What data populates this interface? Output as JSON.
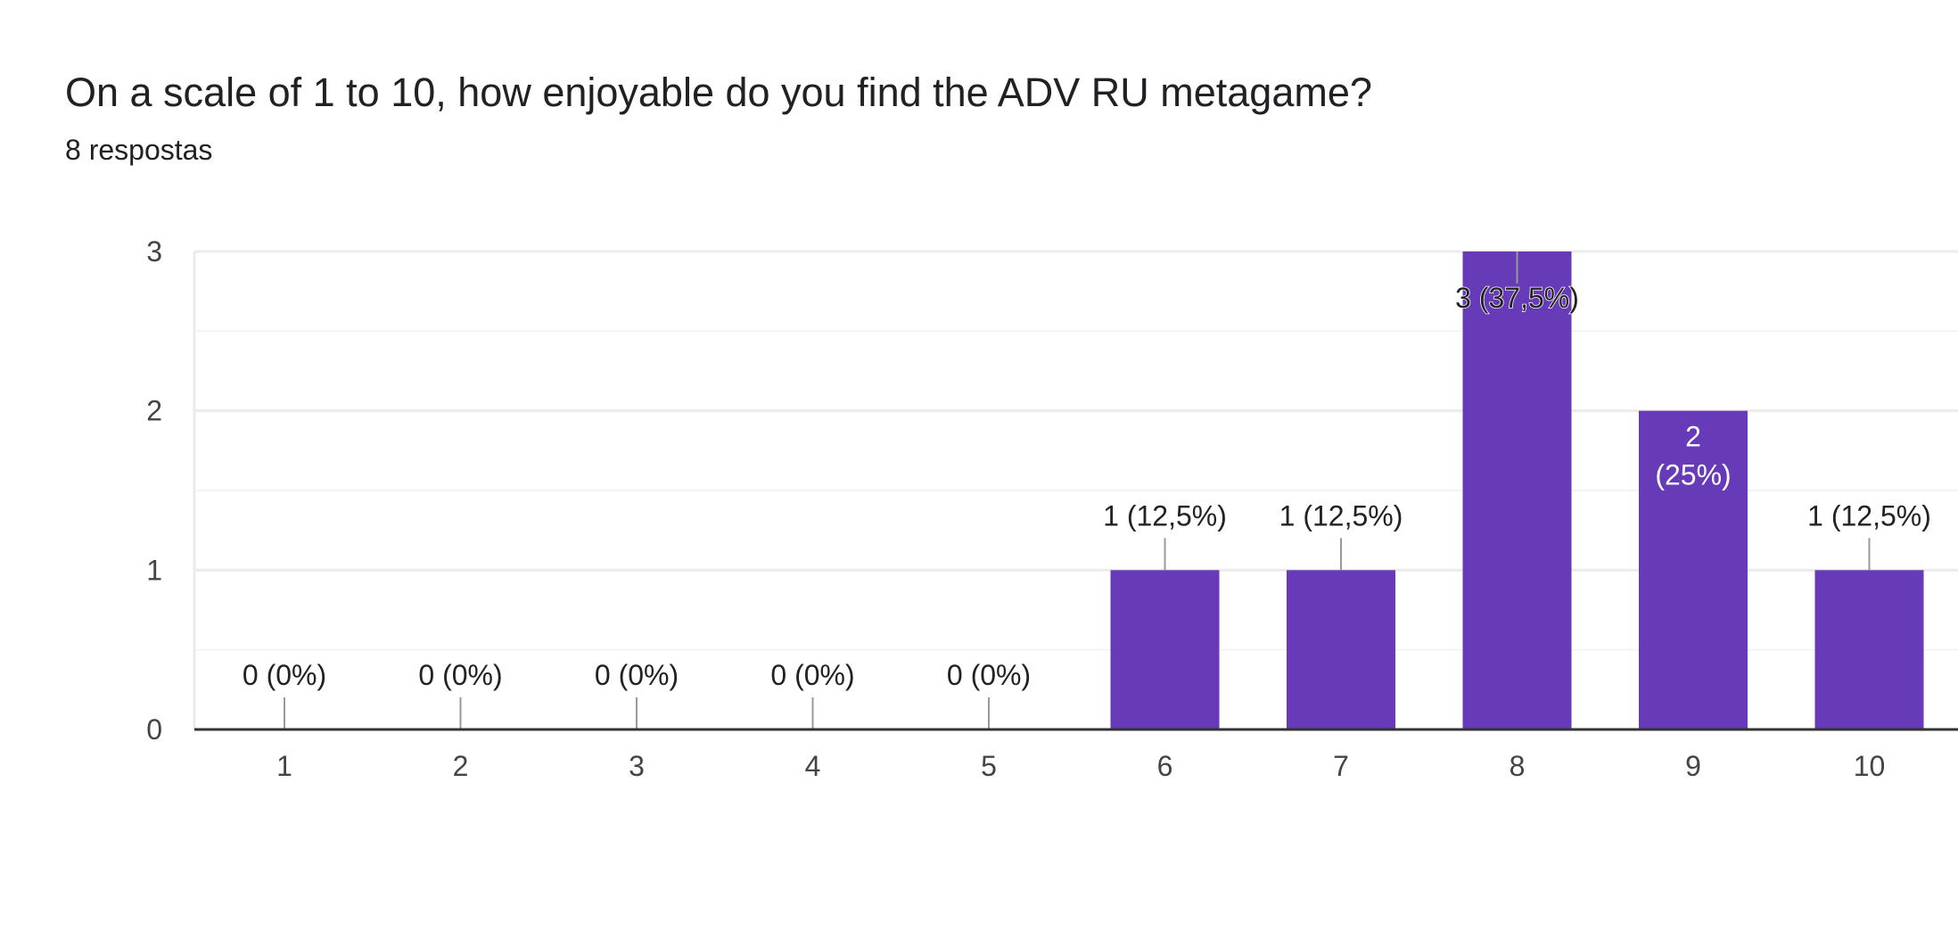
{
  "header": {
    "question": "On a scale of 1 to 10, how enjoyable do you find the ADV RU metagame?",
    "responses": "8 respostas"
  },
  "chart_data": {
    "type": "bar",
    "categories": [
      "1",
      "2",
      "3",
      "4",
      "5",
      "6",
      "7",
      "8",
      "9",
      "10"
    ],
    "values": [
      0,
      0,
      0,
      0,
      0,
      1,
      1,
      3,
      2,
      1
    ],
    "data_labels": [
      "0 (0%)",
      "0 (0%)",
      "0 (0%)",
      "0 (0%)",
      "0 (0%)",
      "1 (12,5%)",
      "1 (12,5%)",
      "3 (37,5%)",
      "2 (25%)",
      "1 (12,5%)"
    ],
    "ylim": [
      0,
      3
    ],
    "yticks": [
      0,
      1,
      2,
      3
    ],
    "minor_grid": true,
    "legend": "none",
    "colors": {
      "bar": "#673AB7",
      "grid": "#EBEBEB",
      "baseline": "#333333",
      "leader": "#999999"
    }
  }
}
